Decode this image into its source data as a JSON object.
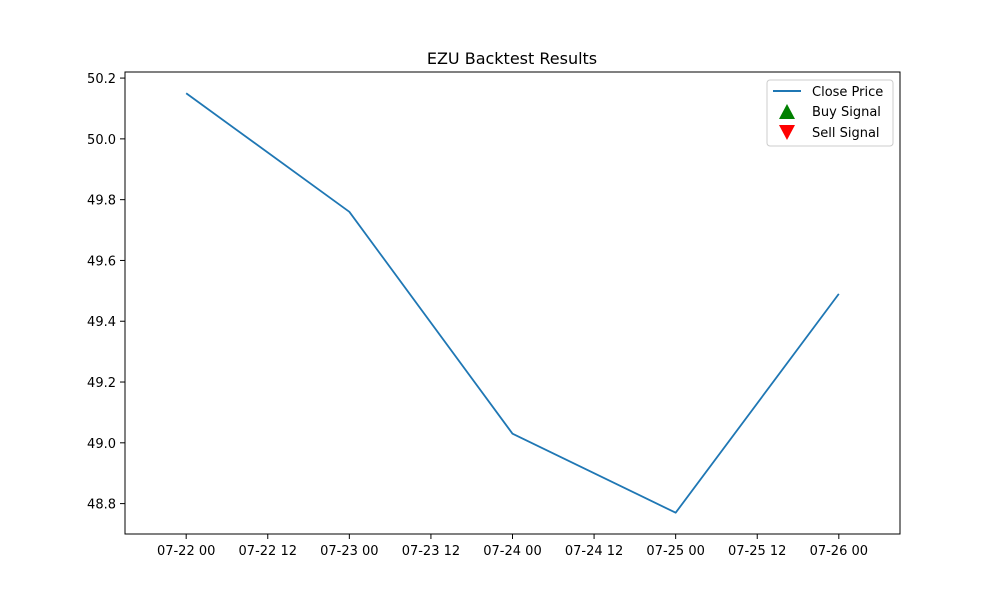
{
  "chart_data": {
    "type": "line",
    "title": "EZU Backtest Results",
    "xlabel": "",
    "ylabel": "",
    "x": [
      "07-22 00",
      "07-23 00",
      "07-24 00",
      "07-25 00",
      "07-26 00"
    ],
    "x_hours": [
      0,
      24,
      48,
      72,
      96
    ],
    "x_ticks": [
      "07-22 00",
      "07-22 12",
      "07-23 00",
      "07-23 12",
      "07-24 00",
      "07-24 12",
      "07-25 00",
      "07-25 12",
      "07-26 00"
    ],
    "y_ticks": [
      "48.8",
      "49.0",
      "49.2",
      "49.4",
      "49.6",
      "49.8",
      "50.0",
      "50.2"
    ],
    "ylim": [
      48.7,
      50.22
    ],
    "series": [
      {
        "name": "Close Price",
        "values": [
          50.15,
          49.76,
          49.03,
          48.77,
          49.49
        ],
        "color": "#1f77b4"
      }
    ],
    "legend": {
      "position": "top-right",
      "entries": [
        {
          "label": "Close Price",
          "marker": "line",
          "color": "#1f77b4"
        },
        {
          "label": "Buy Signal",
          "marker": "triangle-up",
          "color": "#008000"
        },
        {
          "label": "Sell Signal",
          "marker": "triangle-down",
          "color": "#ff0000"
        }
      ]
    },
    "grid": false
  }
}
